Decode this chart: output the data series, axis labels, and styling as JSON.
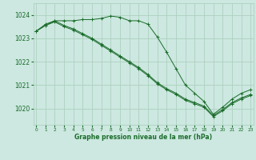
{
  "title": "Graphe pression niveau de la mer (hPa)",
  "bg_color": "#cce8e0",
  "grid_color": "#aaccbb",
  "line_color": "#1a6b2a",
  "x_ticks": [
    0,
    1,
    2,
    3,
    4,
    5,
    6,
    7,
    8,
    9,
    10,
    11,
    12,
    13,
    14,
    15,
    16,
    17,
    18,
    19,
    20,
    21,
    22,
    23
  ],
  "y_ticks": [
    1020,
    1021,
    1022,
    1023,
    1024
  ],
  "ylim": [
    1019.3,
    1024.5
  ],
  "xlim": [
    -0.3,
    23.3
  ],
  "series": [
    {
      "x": [
        0,
        1,
        2,
        3,
        4,
        5,
        6,
        7,
        8,
        9,
        10,
        11,
        12,
        13,
        14,
        15,
        16,
        17,
        18,
        19,
        20,
        21,
        22,
        23
      ],
      "y": [
        1023.3,
        1023.6,
        1023.75,
        1023.75,
        1023.75,
        1023.8,
        1023.8,
        1023.85,
        1023.95,
        1023.9,
        1023.75,
        1023.75,
        1023.6,
        1023.05,
        1022.4,
        1021.7,
        1021.0,
        1020.65,
        1020.3,
        1019.75,
        1020.05,
        1020.4,
        1020.65,
        1020.8
      ],
      "marker": "+"
    },
    {
      "x": [
        0,
        1,
        2,
        3,
        4,
        5,
        6,
        7,
        8,
        9,
        10,
        11,
        12,
        13,
        14,
        15,
        16,
        17,
        18,
        19,
        20,
        21,
        22,
        23
      ],
      "y": [
        1023.3,
        1023.55,
        1023.75,
        1023.55,
        1023.4,
        1023.2,
        1023.0,
        1022.75,
        1022.5,
        1022.25,
        1022.0,
        1021.75,
        1021.45,
        1021.1,
        1020.85,
        1020.65,
        1020.4,
        1020.25,
        1020.1,
        1019.7,
        1019.95,
        1020.25,
        1020.45,
        1020.6
      ],
      "marker": "+"
    },
    {
      "x": [
        0,
        1,
        2,
        3,
        4,
        5,
        6,
        7,
        8,
        9,
        10,
        11,
        12,
        13,
        14,
        15,
        16,
        17,
        18,
        19,
        20,
        21,
        22,
        23
      ],
      "y": [
        1023.3,
        1023.55,
        1023.7,
        1023.5,
        1023.35,
        1023.15,
        1022.95,
        1022.7,
        1022.45,
        1022.2,
        1021.95,
        1021.7,
        1021.4,
        1021.05,
        1020.8,
        1020.6,
        1020.35,
        1020.2,
        1020.05,
        1019.65,
        1019.9,
        1020.2,
        1020.4,
        1020.55
      ],
      "marker": "+"
    }
  ]
}
